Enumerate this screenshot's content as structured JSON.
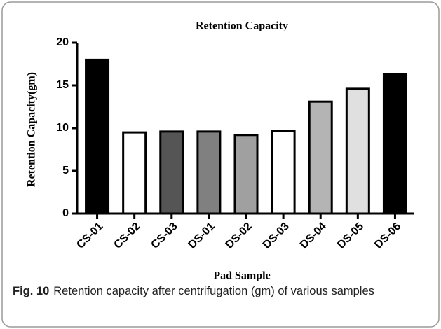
{
  "chart_data": {
    "type": "bar",
    "title": "Retention Capacity",
    "x_label": "Pad Sample",
    "y_label": "Retention Capacity(gm)",
    "categories": [
      "CS-01",
      "CS-02",
      "CS-03",
      "DS-01",
      "DS-02",
      "DS-03",
      "DS-04",
      "DS-05",
      "DS-06"
    ],
    "values": [
      18,
      9.5,
      9.6,
      9.6,
      9.2,
      9.7,
      13.1,
      14.6,
      16.3
    ],
    "colors": [
      "#000000",
      "#ffffff",
      "#555555",
      "#808080",
      "#a0a0a0",
      "#ffffff",
      "#b4b4b4",
      "#e0e0e0",
      "#000000"
    ],
    "ylim": [
      0,
      20
    ],
    "yticks": [
      0,
      5,
      10,
      15,
      20
    ],
    "grid": false
  },
  "caption": {
    "label": "Fig. 10",
    "text": "Retention capacity after centrifugation (gm) of various samples"
  }
}
